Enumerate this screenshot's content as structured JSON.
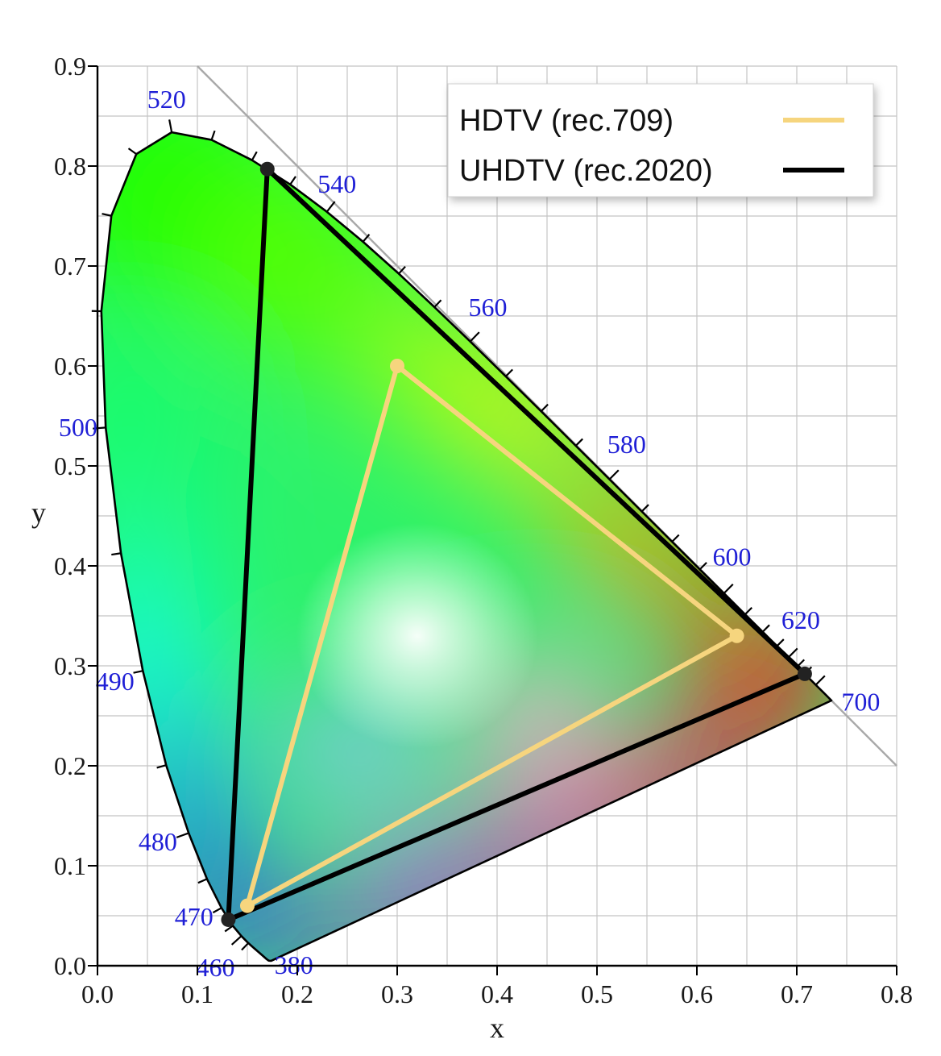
{
  "chart_data": {
    "type": "scatter",
    "subtype": "CIE 1931 chromaticity diagram with gamut triangles",
    "xlabel": "x",
    "ylabel": "y",
    "xlim": [
      0.0,
      0.8
    ],
    "ylim": [
      0.0,
      0.9
    ],
    "xticks": [
      "0.0",
      "0.1",
      "0.2",
      "0.3",
      "0.4",
      "0.5",
      "0.6",
      "0.7",
      "0.8"
    ],
    "yticks": [
      "0.0",
      "0.1",
      "0.2",
      "0.3",
      "0.4",
      "0.5",
      "0.6",
      "0.7",
      "0.8",
      "0.9"
    ],
    "grid": true,
    "legend_position": "top-right",
    "series": [
      {
        "name": "HDTV (rec.709)",
        "color": "#f6d57e",
        "points": [
          [
            0.64,
            0.33
          ],
          [
            0.3,
            0.6
          ],
          [
            0.15,
            0.06
          ]
        ]
      },
      {
        "name": "UHDTV (rec.2020)",
        "color": "#000000",
        "points": [
          [
            0.708,
            0.292
          ],
          [
            0.17,
            0.797
          ],
          [
            0.131,
            0.046
          ]
        ]
      }
    ],
    "spectral_locus_labels": [
      {
        "text": "520",
        "x": 0.074,
        "y": 0.834
      },
      {
        "text": "540",
        "x": 0.23,
        "y": 0.754
      },
      {
        "text": "560",
        "x": 0.373,
        "y": 0.624
      },
      {
        "text": "580",
        "x": 0.512,
        "y": 0.487
      },
      {
        "text": "600",
        "x": 0.627,
        "y": 0.373
      },
      {
        "text": "620",
        "x": 0.691,
        "y": 0.308
      },
      {
        "text": "700",
        "x": 0.735,
        "y": 0.265
      },
      {
        "text": "500",
        "x": 0.008,
        "y": 0.538
      },
      {
        "text": "490",
        "x": 0.045,
        "y": 0.295
      },
      {
        "text": "480",
        "x": 0.091,
        "y": 0.133
      },
      {
        "text": "470",
        "x": 0.124,
        "y": 0.058
      },
      {
        "text": "460",
        "x": 0.144,
        "y": 0.03
      },
      {
        "text": "380",
        "x": 0.174,
        "y": 0.005
      }
    ],
    "accent_colors": {
      "axis": "#000000",
      "grid": "#bbbbbb",
      "label_blue": "#1f1fd6"
    }
  }
}
